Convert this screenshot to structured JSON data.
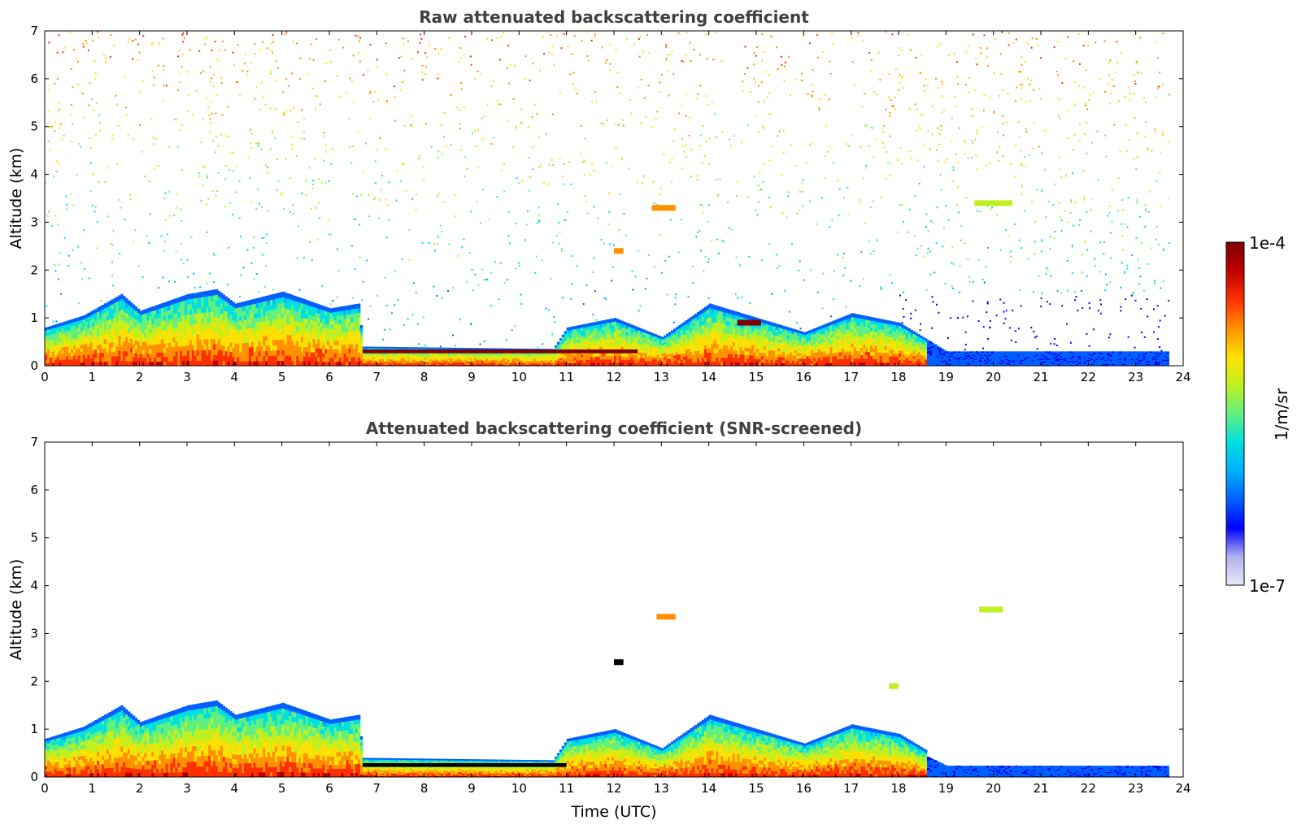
{
  "chart_data": [
    {
      "type": "heatmap",
      "id": "raw",
      "title": "Raw attenuated backscattering coefficient",
      "xlabel": "",
      "ylabel": "Altitude (km)",
      "xlim": [
        0,
        24
      ],
      "ylim": [
        0,
        7
      ],
      "x_ticks": [
        "0",
        "1",
        "2",
        "3",
        "4",
        "5",
        "6",
        "7",
        "8",
        "9",
        "10",
        "11",
        "12",
        "13",
        "14",
        "15",
        "16",
        "17",
        "18",
        "19",
        "20",
        "21",
        "22",
        "23",
        "24"
      ],
      "y_ticks": [
        "0",
        "1",
        "2",
        "3",
        "4",
        "5",
        "6",
        "7"
      ],
      "data_end_time": 23.7,
      "boundary_layer_top_km": [
        [
          0,
          0.8
        ],
        [
          0.8,
          1.05
        ],
        [
          1.6,
          1.5
        ],
        [
          2.0,
          1.15
        ],
        [
          3.0,
          1.5
        ],
        [
          3.6,
          1.6
        ],
        [
          4.0,
          1.3
        ],
        [
          5.0,
          1.55
        ],
        [
          6.0,
          1.2
        ],
        [
          6.6,
          1.3
        ],
        [
          6.7,
          0.4
        ],
        [
          10.7,
          0.35
        ],
        [
          11.0,
          0.8
        ],
        [
          12.0,
          1.0
        ],
        [
          13.0,
          0.6
        ],
        [
          14.0,
          1.3
        ],
        [
          15.0,
          1.0
        ],
        [
          16.0,
          0.7
        ],
        [
          17.0,
          1.1
        ],
        [
          18.0,
          0.9
        ],
        [
          19.0,
          0.3
        ],
        [
          23.7,
          0.3
        ]
      ],
      "features": [
        {
          "name": "aerosol-layer",
          "x_range": [
            6.7,
            12.5
          ],
          "altitude_km": 0.3,
          "level": "max"
        },
        {
          "name": "cloud",
          "x_range": [
            12.8,
            13.3
          ],
          "altitude_km": 3.3,
          "level": "high"
        },
        {
          "name": "cloud",
          "x_range": [
            14.6,
            15.1
          ],
          "altitude_km": 0.9,
          "level": "max"
        },
        {
          "name": "cloud",
          "x_range": [
            19.6,
            20.4
          ],
          "altitude_km": 3.4,
          "level": "mid"
        },
        {
          "name": "cloud",
          "x_range": [
            12.0,
            12.2
          ],
          "altitude_km": 2.4,
          "level": "high"
        }
      ]
    },
    {
      "type": "heatmap",
      "id": "screened",
      "title": "Attenuated backscattering coefficient (SNR-screened)",
      "xlabel": "Time (UTC)",
      "ylabel": "Altitude (km)",
      "xlim": [
        0,
        24
      ],
      "ylim": [
        0,
        7
      ],
      "x_ticks": [
        "0",
        "1",
        "2",
        "3",
        "4",
        "5",
        "6",
        "7",
        "8",
        "9",
        "10",
        "11",
        "12",
        "13",
        "14",
        "15",
        "16",
        "17",
        "18",
        "19",
        "20",
        "21",
        "22",
        "23",
        "24"
      ],
      "y_ticks": [
        "0",
        "1",
        "2",
        "3",
        "4",
        "5",
        "6",
        "7"
      ],
      "data_end_time": 23.7,
      "features": [
        {
          "name": "aerosol-layer",
          "x_range": [
            6.7,
            11.0
          ],
          "altitude_km": 0.25,
          "level": "black"
        },
        {
          "name": "cloud",
          "x_range": [
            12.9,
            13.3
          ],
          "altitude_km": 3.35,
          "level": "high"
        },
        {
          "name": "cloud",
          "x_range": [
            19.7,
            20.2
          ],
          "altitude_km": 3.5,
          "level": "mid"
        },
        {
          "name": "cloud",
          "x_range": [
            17.8,
            18.0
          ],
          "altitude_km": 1.9,
          "level": "mid"
        },
        {
          "name": "cloud",
          "x_range": [
            12.0,
            12.2
          ],
          "altitude_km": 2.4,
          "level": "black"
        }
      ]
    }
  ],
  "colorbar": {
    "max_label": "1e-4",
    "min_label": "1e-7",
    "unit_label": "1/m/sr",
    "colormap": [
      "#e8e8f8",
      "#b0b0f0",
      "#0000ff",
      "#0060ff",
      "#00b0ff",
      "#00e0e0",
      "#60f080",
      "#c0f020",
      "#ffe000",
      "#ff9000",
      "#ff3000",
      "#c00000",
      "#800000"
    ]
  }
}
